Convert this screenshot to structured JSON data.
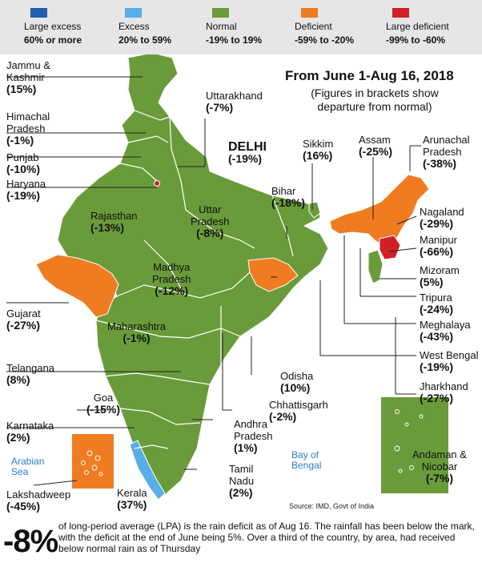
{
  "legend": [
    {
      "name": "Large excess",
      "range": "60% or more",
      "color": "#1f5fb0"
    },
    {
      "name": "Excess",
      "range": "20% to 59%",
      "color": "#5aaee8"
    },
    {
      "name": "Normal",
      "range": "-19% to 19%",
      "color": "#6a9b3a"
    },
    {
      "name": "Deficient",
      "range": "-59% to -20%",
      "color": "#f07c22"
    },
    {
      "name": "Large deficient",
      "range": "-99% to -60%",
      "color": "#d11f26"
    }
  ],
  "title": "From June 1-Aug 16, 2018",
  "subtitle_line1": "(Figures in brackets show",
  "subtitle_line2": "departure from normal)",
  "states": {
    "jammu_kashmir": {
      "name1": "Jammu &",
      "name2": "Kashmir",
      "value": "(15%)"
    },
    "himachal": {
      "name1": "Himachal",
      "name2": "Pradesh",
      "value": "(-1%)"
    },
    "punjab": {
      "name": "Punjab",
      "value": "(-10%)"
    },
    "haryana": {
      "name": "Haryana",
      "value": "(-19%)"
    },
    "uttarakhand": {
      "name": "Uttarakhand",
      "value": "(-7%)"
    },
    "delhi": {
      "name": "DELHI",
      "value": "(-19%)"
    },
    "rajasthan": {
      "name": "Rajasthan",
      "value": "(-13%)"
    },
    "uttar_pradesh": {
      "name1": "Uttar",
      "name2": "Pradesh",
      "value": "(-8%)"
    },
    "madhya_pradesh": {
      "name1": "Madhya",
      "name2": "Pradesh",
      "value": "(-12%)"
    },
    "gujarat": {
      "name": "Gujarat",
      "value": "(-27%)"
    },
    "maharashtra": {
      "name": "Maharashtra",
      "value": "(-1%)"
    },
    "telangana": {
      "name": "Telangana",
      "value": "(8%)"
    },
    "goa": {
      "name": "Goa",
      "value": "(-15%)"
    },
    "karnataka": {
      "name": "Karnataka",
      "value": "(2%)"
    },
    "lakshadweep": {
      "name": "Lakshadweep",
      "value": "(-45%)"
    },
    "kerala": {
      "name": "Kerala",
      "value": "(37%)"
    },
    "tamil_nadu": {
      "name1": "Tamil",
      "name2": "Nadu",
      "value": "(2%)"
    },
    "andhra_pradesh": {
      "name1": "Andhra",
      "name2": "Pradesh",
      "value": "(1%)"
    },
    "chhattisgarh": {
      "name": "Chhattisgarh",
      "value": "(-2%)"
    },
    "odisha": {
      "name": "Odisha",
      "value": "(10%)"
    },
    "jharkhand": {
      "name": "Jharkhand",
      "value": "(-27%)"
    },
    "west_bengal": {
      "name": "West Bengal",
      "value": "(-19%)"
    },
    "meghalaya": {
      "name": "Meghalaya",
      "value": "(-43%)"
    },
    "tripura": {
      "name": "Tripura",
      "value": "(-24%)"
    },
    "mizoram": {
      "name": "Mizoram",
      "value": "(5%)"
    },
    "manipur": {
      "name": "Manipur",
      "value": "(-66%)"
    },
    "nagaland": {
      "name": "Nagaland",
      "value": "(-29%)"
    },
    "arunachal": {
      "name1": "Arunachal",
      "name2": "Pradesh",
      "value": "(-38%)"
    },
    "assam": {
      "name": "Assam",
      "value": "(-25%)"
    },
    "sikkim": {
      "name": "Sikkim",
      "value": "(16%)"
    },
    "bihar": {
      "name": "Bihar",
      "value": "(-18%)"
    },
    "andaman": {
      "name1": "Andaman &",
      "name2": "Nicobar",
      "value": "(-7%)"
    }
  },
  "seas": {
    "arabian1": "Arabian",
    "arabian2": "Sea",
    "bengal1": "Bay of",
    "bengal2": "Bengal"
  },
  "source": "Source: IMD, Govt of India",
  "deficit_value": "-8%",
  "footnote": "of long-period average (LPA) is the rain deficit as of Aug 16. The rainfall has been below the mark, with the deficit at the end of June being 5%. Over a third of the country, by area, had received below normal rain as of Thursday"
}
